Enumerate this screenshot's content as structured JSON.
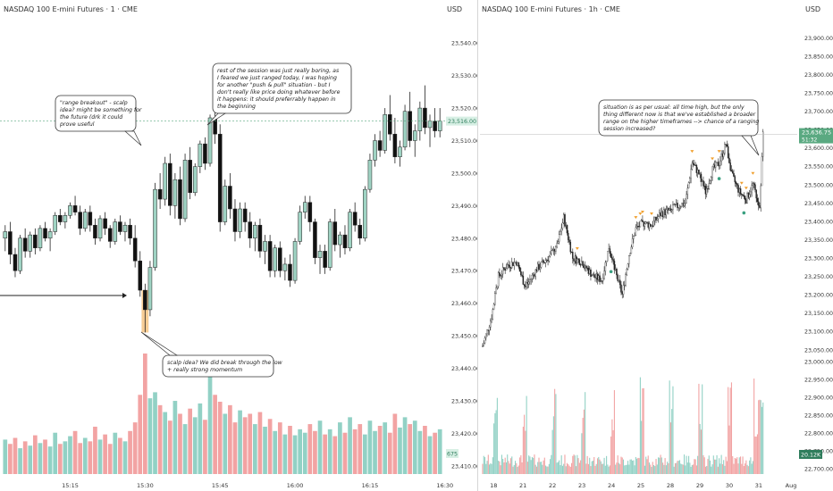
{
  "colors": {
    "up": "#5fa595",
    "down": "#111111",
    "vol_up": "#92d1c5",
    "vol_down": "#f2a3a3",
    "price_tag": "#5aa981",
    "highlight": "#f5c07a",
    "orange_marker": "#f0a030",
    "green_marker": "#3aa080"
  },
  "left": {
    "title": "NASDAQ 100 E-mini Futures · 1 · CME",
    "currency": "USD",
    "price_tag": "23,516.00",
    "volume_tag": "675",
    "annotations": [
      "\"range breakout\" - scalp idea? might be something for the future (drk it could prove useful",
      "rest of the session was just really boring, as I feared we just ranged today, I was hoping for another \"push & pull\" situation - but I don't really like price doing whatever before it happens: it should preferrably happen in the beginning",
      "scalp idea? We did break through the low + really strong momentum"
    ]
  },
  "right": {
    "title": "NASDAQ 100 E-mini Futures · 1h · CME",
    "currency": "USD",
    "price_tag": "23,636.75",
    "price_tag_sub": "51:32",
    "volume_tag": "20.12K",
    "annotations": [
      "situation is as per usual: all time high, but the only thing different now is that we've established a broader range on the higher timeframes --> chance of a ranging session increased?"
    ]
  },
  "chart_data": [
    {
      "type": "candlestick",
      "title": "NASDAQ 100 E-mini Futures · 1 · CME",
      "ylim": [
        23405,
        23545
      ],
      "y_ticks": [
        23410,
        23420,
        23430,
        23440,
        23450,
        23460,
        23470,
        23480,
        23490,
        23500,
        23510,
        23520,
        23530,
        23540
      ],
      "y_tick_labels": [
        "23,410.00",
        "23,420.00",
        "23,430.00",
        "23,440.00",
        "23,450.00",
        "23,460.00",
        "23,470.00",
        "23,480.00",
        "23,490.00",
        "23,500.00",
        "23,510.00",
        "23,520.00",
        "23,530.00",
        "23,540.00"
      ],
      "x_tick_labels": [
        {
          "label": "15:15",
          "index": 13
        },
        {
          "label": "15:30",
          "index": 28
        },
        {
          "label": "15:45",
          "index": 43
        },
        {
          "label": "16:00",
          "index": 58
        },
        {
          "label": "16:15",
          "index": 73
        },
        {
          "label": "16:30",
          "index": 88
        }
      ],
      "current_price": 23516,
      "series": [
        {
          "name": "price",
          "ohlc": [
            [
              23480,
              23484,
              23476,
              23482
            ],
            [
              23482,
              23485,
              23472,
              23475
            ],
            [
              23475,
              23477,
              23468,
              23470
            ],
            [
              23470,
              23481,
              23469,
              23480
            ],
            [
              23480,
              23483,
              23474,
              23476
            ],
            [
              23476,
              23482,
              23474,
              23481
            ],
            [
              23481,
              23483,
              23475,
              23477
            ],
            [
              23477,
              23484,
              23476,
              23483
            ],
            [
              23483,
              23485,
              23479,
              23480
            ],
            [
              23480,
              23483,
              23476,
              23482
            ],
            [
              23482,
              23488,
              23481,
              23487
            ],
            [
              23487,
              23489,
              23484,
              23485
            ],
            [
              23485,
              23488,
              23483,
              23487
            ],
            [
              23487,
              23491,
              23486,
              23490
            ],
            [
              23490,
              23493,
              23487,
              23488
            ],
            [
              23488,
              23490,
              23481,
              23483
            ],
            [
              23483,
              23489,
              23482,
              23488
            ],
            [
              23488,
              23490,
              23482,
              23484
            ],
            [
              23484,
              23486,
              23478,
              23480
            ],
            [
              23480,
              23487,
              23479,
              23486
            ],
            [
              23486,
              23488,
              23481,
              23483
            ],
            [
              23483,
              23484,
              23477,
              23479
            ],
            [
              23479,
              23486,
              23478,
              23485
            ],
            [
              23485,
              23487,
              23481,
              23482
            ],
            [
              23482,
              23485,
              23479,
              23484
            ],
            [
              23484,
              23486,
              23478,
              23480
            ],
            [
              23480,
              23484,
              23471,
              23473
            ],
            [
              23473,
              23476,
              23462,
              23464
            ],
            [
              23464,
              23466,
              23451,
              23458
            ],
            [
              23458,
              23473,
              23456,
              23471
            ],
            [
              23471,
              23497,
              23470,
              23495
            ],
            [
              23495,
              23500,
              23489,
              23492
            ],
            [
              23492,
              23505,
              23490,
              23503
            ],
            [
              23503,
              23506,
              23487,
              23490
            ],
            [
              23490,
              23500,
              23486,
              23498
            ],
            [
              23498,
              23502,
              23484,
              23486
            ],
            [
              23486,
              23506,
              23485,
              23504
            ],
            [
              23504,
              23508,
              23492,
              23494
            ],
            [
              23494,
              23503,
              23493,
              23502
            ],
            [
              23502,
              23510,
              23500,
              23509
            ],
            [
              23509,
              23511,
              23501,
              23503
            ],
            [
              23503,
              23518,
              23502,
              23517
            ],
            [
              23517,
              23521,
              23509,
              23512
            ],
            [
              23512,
              23515,
              23482,
              23485
            ],
            [
              23485,
              23498,
              23484,
              23496
            ],
            [
              23496,
              23500,
              23486,
              23489
            ],
            [
              23489,
              23492,
              23479,
              23482
            ],
            [
              23482,
              23491,
              23480,
              23489
            ],
            [
              23489,
              23491,
              23482,
              23485
            ],
            [
              23485,
              23488,
              23477,
              23480
            ],
            [
              23480,
              23485,
              23476,
              23484
            ],
            [
              23484,
              23486,
              23474,
              23476
            ],
            [
              23476,
              23481,
              23472,
              23479
            ],
            [
              23479,
              23481,
              23468,
              23470
            ],
            [
              23470,
              23478,
              23468,
              23477
            ],
            [
              23477,
              23479,
              23468,
              23470
            ],
            [
              23470,
              23474,
              23467,
              23472
            ],
            [
              23472,
              23475,
              23465,
              23467
            ],
            [
              23467,
              23480,
              23466,
              23479
            ],
            [
              23479,
              23490,
              23478,
              23488
            ],
            [
              23488,
              23493,
              23486,
              23491
            ],
            [
              23491,
              23493,
              23482,
              23485
            ],
            [
              23485,
              23486,
              23472,
              23474
            ],
            [
              23474,
              23478,
              23469,
              23476
            ],
            [
              23476,
              23478,
              23469,
              23471
            ],
            [
              23471,
              23486,
              23470,
              23485
            ],
            [
              23485,
              23489,
              23476,
              23478
            ],
            [
              23478,
              23482,
              23474,
              23481
            ],
            [
              23481,
              23484,
              23475,
              23477
            ],
            [
              23477,
              23489,
              23476,
              23488
            ],
            [
              23488,
              23491,
              23482,
              23484
            ],
            [
              23484,
              23486,
              23478,
              23480
            ],
            [
              23480,
              23496,
              23479,
              23495
            ],
            [
              23495,
              23506,
              23494,
              23504
            ],
            [
              23504,
              23512,
              23502,
              23510
            ],
            [
              23510,
              23513,
              23505,
              23507
            ],
            [
              23507,
              23520,
              23506,
              23518
            ],
            [
              23518,
              23524,
              23510,
              23512
            ],
            [
              23512,
              23517,
              23503,
              23505
            ],
            [
              23505,
              23510,
              23502,
              23508
            ],
            [
              23508,
              23521,
              23507,
              23519
            ],
            [
              23519,
              23525,
              23508,
              23510
            ],
            [
              23510,
              23515,
              23505,
              23513
            ],
            [
              23513,
              23522,
              23510,
              23520
            ],
            [
              23520,
              23527,
              23512,
              23514
            ],
            [
              23514,
              23518,
              23508,
              23516
            ],
            [
              23516,
              23520,
              23511,
              23513
            ],
            [
              23513,
              23520,
              23511,
              23516
            ]
          ]
        }
      ],
      "volume": [
        40,
        35,
        42,
        30,
        38,
        33,
        45,
        36,
        40,
        32,
        48,
        35,
        38,
        44,
        50,
        36,
        42,
        38,
        55,
        40,
        46,
        35,
        48,
        42,
        38,
        50,
        60,
        92,
        140,
        88,
        95,
        80,
        72,
        62,
        85,
        70,
        58,
        76,
        66,
        82,
        63,
        115,
        92,
        84,
        70,
        80,
        60,
        74,
        66,
        70,
        58,
        72,
        55,
        64,
        50,
        60,
        46,
        56,
        45,
        52,
        48,
        58,
        50,
        62,
        46,
        52,
        44,
        60,
        48,
        66,
        52,
        58,
        46,
        62,
        50,
        56,
        60,
        48,
        70,
        54,
        66,
        58,
        62,
        50,
        56,
        44,
        48,
        52
      ]
    },
    {
      "type": "candlestick",
      "title": "NASDAQ 100 E-mini Futures · 1h · CME",
      "ylim": [
        23030,
        23930
      ],
      "y_ticks": [
        23050,
        23100,
        23150,
        23200,
        23250,
        23300,
        23350,
        23400,
        23450,
        23500,
        23550,
        23600,
        23650,
        23700,
        23750,
        23800,
        23850,
        23900
      ],
      "y_tick_labels": [
        "23,050.00",
        "23,100.00",
        "23,150.00",
        "23,200.00",
        "23,250.00",
        "23,300.00",
        "23,350.00",
        "23,400.00",
        "23,450.00",
        "23,500.00",
        "23,550.00",
        "23,600.00",
        "23,650.00",
        "23,700.00",
        "23,750.00",
        "23,800.00",
        "23,850.00",
        "23,900.00"
      ],
      "volume_axis_labels": [
        "22,700.00",
        "22,750.00",
        "22,800.00",
        "22,850.00",
        "22,900.00",
        "22,950.00",
        "23,000.00"
      ],
      "x_tick_labels": [
        {
          "label": "18",
          "index": 12
        },
        {
          "label": "21",
          "index": 38
        },
        {
          "label": "22",
          "index": 64
        },
        {
          "label": "23",
          "index": 90
        },
        {
          "label": "24",
          "index": 116
        },
        {
          "label": "25",
          "index": 142
        },
        {
          "label": "28",
          "index": 168
        },
        {
          "label": "29",
          "index": 194
        },
        {
          "label": "30",
          "index": 220
        },
        {
          "label": "31",
          "index": 246
        },
        {
          "label": "Aug",
          "index": 272
        }
      ],
      "current_price": 23636.75,
      "bar_count": 250,
      "anchors": [
        {
          "i": 0,
          "p": 23060
        },
        {
          "i": 8,
          "p": 23140
        },
        {
          "i": 14,
          "p": 23250
        },
        {
          "i": 22,
          "p": 23280
        },
        {
          "i": 30,
          "p": 23290
        },
        {
          "i": 38,
          "p": 23220
        },
        {
          "i": 48,
          "p": 23270
        },
        {
          "i": 58,
          "p": 23300
        },
        {
          "i": 66,
          "p": 23330
        },
        {
          "i": 72,
          "p": 23410
        },
        {
          "i": 80,
          "p": 23300
        },
        {
          "i": 88,
          "p": 23290
        },
        {
          "i": 98,
          "p": 23250
        },
        {
          "i": 106,
          "p": 23240
        },
        {
          "i": 112,
          "p": 23330
        },
        {
          "i": 118,
          "p": 23260
        },
        {
          "i": 124,
          "p": 23200
        },
        {
          "i": 130,
          "p": 23310
        },
        {
          "i": 136,
          "p": 23380
        },
        {
          "i": 142,
          "p": 23395
        },
        {
          "i": 150,
          "p": 23390
        },
        {
          "i": 158,
          "p": 23420
        },
        {
          "i": 166,
          "p": 23430
        },
        {
          "i": 172,
          "p": 23440
        },
        {
          "i": 180,
          "p": 23450
        },
        {
          "i": 186,
          "p": 23560
        },
        {
          "i": 192,
          "p": 23530
        },
        {
          "i": 198,
          "p": 23480
        },
        {
          "i": 204,
          "p": 23540
        },
        {
          "i": 210,
          "p": 23560
        },
        {
          "i": 216,
          "p": 23610
        },
        {
          "i": 222,
          "p": 23520
        },
        {
          "i": 228,
          "p": 23480
        },
        {
          "i": 234,
          "p": 23460
        },
        {
          "i": 240,
          "p": 23500
        },
        {
          "i": 246,
          "p": 23440
        },
        {
          "i": 249,
          "p": 23637
        }
      ]
    }
  ]
}
